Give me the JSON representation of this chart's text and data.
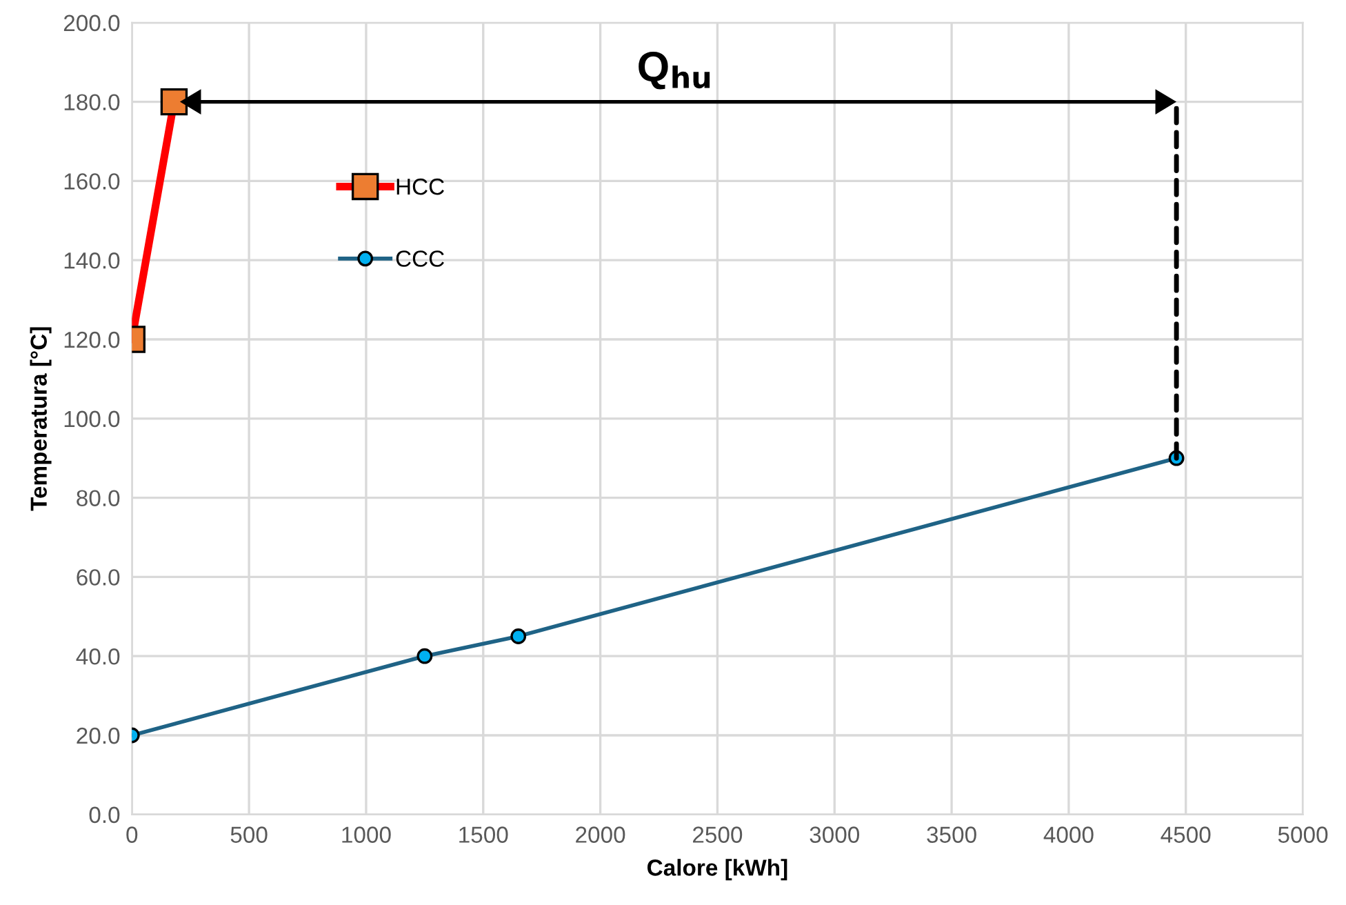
{
  "chart_data": {
    "type": "line",
    "xlabel": "Calore [kWh]",
    "ylabel": "Temperatura [°C]",
    "series": [
      {
        "name": "HCC",
        "color": "#ff0000",
        "x": [
          0,
          180
        ],
        "values": [
          120,
          180
        ],
        "marker": "square"
      },
      {
        "name": "CCC",
        "color": "#1f6386",
        "x": [
          0,
          1250,
          1650,
          4460
        ],
        "values": [
          20,
          40,
          45,
          90
        ],
        "marker": "circle"
      }
    ],
    "annotations": [
      "Q$_{hu}$"
    ],
    "xlim": [
      0,
      5000
    ],
    "xticks": [
      0,
      500,
      1000,
      1500,
      2000,
      2500,
      3000,
      3500,
      4000,
      4500,
      5000
    ],
    "ylim": [
      0,
      200
    ],
    "yticks": [
      {
        "value": 0,
        "label": "0.0"
      },
      {
        "value": 20,
        "label": "20.0"
      },
      {
        "value": 40,
        "label": "40.0"
      },
      {
        "value": 60,
        "label": "60.0"
      },
      {
        "value": 80,
        "label": "80.0"
      },
      {
        "value": 100,
        "label": "100.0"
      },
      {
        "value": 120,
        "label": "120.0"
      },
      {
        "value": 140,
        "label": "140.0"
      },
      {
        "value": 160,
        "label": "160.0"
      },
      {
        "value": 180,
        "label": "180.0"
      },
      {
        "value": 200,
        "label": "200.0"
      }
    ],
    "grid": true,
    "legend": "top left",
    "line_style": "solid"
  }
}
